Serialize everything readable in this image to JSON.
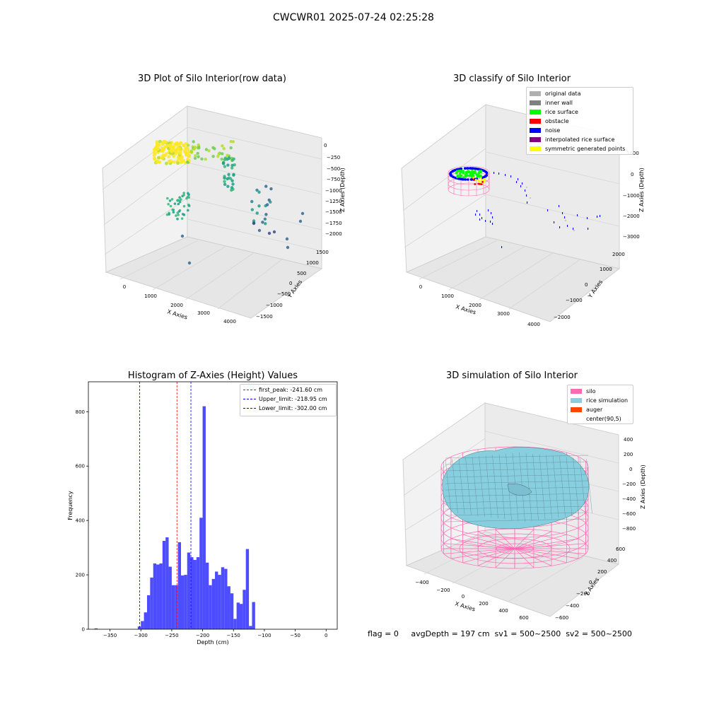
{
  "figure": {
    "suptitle": "CWCWR01 2025-07-24 02:25:28",
    "status_text": "flag = 0     avgDepth = 197 cm  sv1 = 500~2500  sv2 = 500~2500"
  },
  "colors": {
    "hist_bar": "#4d4dff",
    "peak_line": "#ff0000",
    "limit_line": "#0000ff",
    "silo": "#ff69b4",
    "rice_simulation": "#87cedf",
    "auger": "#ff4500",
    "original_data": "#b0b0b0",
    "inner_wall": "#808080",
    "rice_surface": "#00ff00",
    "obstacle": "#ff0000",
    "noise": "#0000ff",
    "interpolated": "#800080",
    "symmetric": "#ffff00"
  },
  "chart_data": [
    {
      "type": "scatter",
      "projection": "3d",
      "title": "3D Plot of Silo Interior(row data)",
      "xlabel": "X Axies",
      "ylabel": "Y Axies",
      "zlabel": "Z Axies (Depth)",
      "x_ticks": [
        "0",
        "1000",
        "2000",
        "3000",
        "4000"
      ],
      "y_ticks": [
        "1500",
        "1000",
        "500",
        "0",
        "−500",
        "−1000",
        "−1500"
      ],
      "z_ticks": [
        "0",
        "−250",
        "−500",
        "−750",
        "−1000",
        "−1250",
        "−1500",
        "−1750",
        "−2000"
      ],
      "colormap": "viridis (by depth)"
    },
    {
      "type": "scatter",
      "projection": "3d",
      "title": "3D classify of Silo Interior",
      "xlabel": "X Axies",
      "ylabel": "Y Axies",
      "zlabel": "Z Axies (Depth)",
      "x_ticks": [
        "0",
        "1000",
        "2000",
        "3000",
        "4000"
      ],
      "y_ticks": [
        "2000",
        "1000",
        "0",
        "−1000",
        "−2000"
      ],
      "z_ticks": [
        "1000",
        "0",
        "−1000",
        "−2000",
        "−3000"
      ],
      "legend": [
        {
          "label": "original data",
          "color": "#b0b0b0"
        },
        {
          "label": "inner wall",
          "color": "#808080"
        },
        {
          "label": "rice surface",
          "color": "#00ff00"
        },
        {
          "label": "obstacle",
          "color": "#ff0000"
        },
        {
          "label": "noise",
          "color": "#0000ff"
        },
        {
          "label": "interpolated rice surface",
          "color": "#800080"
        },
        {
          "label": "symmetric generated points",
          "color": "#ffff00"
        }
      ],
      "legend_loc": "upper right"
    },
    {
      "type": "bar",
      "title": "Histogram of Z-Axies (Height) Values",
      "xlabel": "Depth (cm)",
      "ylabel": "Frequency",
      "xlim": [
        -385,
        18
      ],
      "ylim": [
        0,
        910
      ],
      "x_ticks": [
        -350,
        -300,
        -250,
        -200,
        -150,
        -100,
        -50,
        0
      ],
      "y_ticks": [
        0,
        200,
        400,
        600,
        800
      ],
      "bin_width": 5,
      "bins": [
        [
          -375,
          3
        ],
        [
          -370,
          0
        ],
        [
          -365,
          0
        ],
        [
          -360,
          0
        ],
        [
          -355,
          0
        ],
        [
          -350,
          0
        ],
        [
          -345,
          0
        ],
        [
          -340,
          0
        ],
        [
          -335,
          0
        ],
        [
          -330,
          0
        ],
        [
          -325,
          0
        ],
        [
          -320,
          0
        ],
        [
          -315,
          0
        ],
        [
          -310,
          0
        ],
        [
          -305,
          10
        ],
        [
          -300,
          30
        ],
        [
          -295,
          62
        ],
        [
          -290,
          125
        ],
        [
          -285,
          190
        ],
        [
          -280,
          242
        ],
        [
          -275,
          238
        ],
        [
          -270,
          242
        ],
        [
          -265,
          325
        ],
        [
          -260,
          338
        ],
        [
          -255,
          230
        ],
        [
          -250,
          162
        ],
        [
          -245,
          162
        ],
        [
          -240,
          320
        ],
        [
          -235,
          198
        ],
        [
          -230,
          200
        ],
        [
          -225,
          282
        ],
        [
          -220,
          265
        ],
        [
          -215,
          255
        ],
        [
          -210,
          265
        ],
        [
          -205,
          410
        ],
        [
          -200,
          820
        ],
        [
          -195,
          245
        ],
        [
          -190,
          162
        ],
        [
          -185,
          185
        ],
        [
          -180,
          212
        ],
        [
          -175,
          200
        ],
        [
          -170,
          228
        ],
        [
          -165,
          222
        ],
        [
          -160,
          158
        ],
        [
          -155,
          132
        ],
        [
          -150,
          38
        ],
        [
          -145,
          98
        ],
        [
          -140,
          93
        ],
        [
          -135,
          145
        ],
        [
          -130,
          295
        ],
        [
          -125,
          12
        ],
        [
          -120,
          100
        ]
      ],
      "reference_lines": [
        {
          "label": "first_peak: -241.60 cm",
          "x": -241.6,
          "color": "#ff0000"
        },
        {
          "label": "Upper_limit: -218.95 cm",
          "x": -218.95,
          "color": "#0000ff"
        },
        {
          "label": "Lower_limit: -302.00 cm",
          "x": -302.0,
          "color": "#0000ff"
        }
      ],
      "legend_loc": "upper right"
    },
    {
      "type": "surface",
      "projection": "3d",
      "title": "3D simulation of Silo Interior",
      "xlabel": "X Axies",
      "ylabel": "Y Axies",
      "zlabel": "Z Axies (Depth)",
      "x_ticks": [
        "−400",
        "−200",
        "0",
        "200",
        "400",
        "600"
      ],
      "y_ticks": [
        "600",
        "400",
        "200",
        "0",
        "−200",
        "−400",
        "−600"
      ],
      "z_ticks": [
        "400",
        "200",
        "0",
        "−200",
        "−400",
        "−600",
        "−800"
      ],
      "legend": [
        {
          "label": "silo",
          "color": "#ff69b4"
        },
        {
          "label": "rice simulation",
          "color": "#87cedf"
        },
        {
          "label": "auger",
          "color": "#ff4500"
        },
        {
          "label": "center(90,5)",
          "color": ""
        }
      ],
      "legend_loc": "upper right"
    }
  ]
}
